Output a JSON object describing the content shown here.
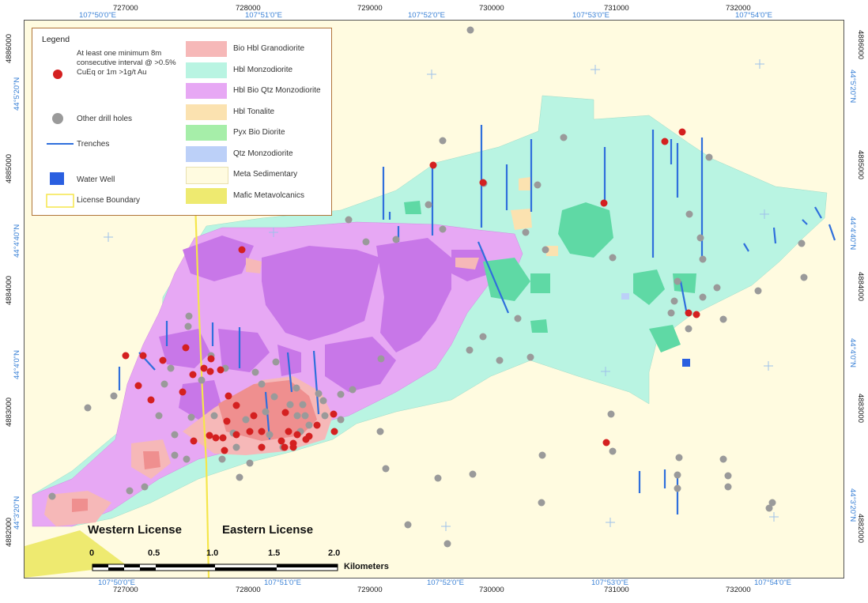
{
  "legend": {
    "title": "Legend",
    "symbols": {
      "significant_interval": "At least one minimum 8m consecutive interval @ >0.5% CuEq or 1m >1g/t Au",
      "other_drill_holes": "Other drill holes",
      "trenches": "Trenches",
      "water_well": "Water Well",
      "license_boundary": "License Boundary"
    },
    "units": [
      {
        "label": "Bio Hbl Granodiorite",
        "color": "#f6b8b8"
      },
      {
        "label": "Hbl Monzodiorite",
        "color": "#b9f4e2"
      },
      {
        "label": "Hbl Bio Qtz Monzodiorite",
        "color": "#e7a8f4"
      },
      {
        "label": "Hbl Tonalite",
        "color": "#fbe2b0"
      },
      {
        "label": "Pyx Bio Diorite",
        "color": "#a6eea9"
      },
      {
        "label": "Qtz Monzodiorite",
        "color": "#bcd0f8"
      },
      {
        "label": "Meta Sedimentary",
        "color": "#fffbe0"
      },
      {
        "label": "Mafic Metavolcanics",
        "color": "#eeea70"
      }
    ]
  },
  "grid": {
    "easting_top": [
      "727000",
      "728000",
      "729000",
      "730000",
      "731000",
      "732000"
    ],
    "easting_bottom": [
      "727000",
      "728000",
      "729000",
      "730000",
      "731000",
      "732000"
    ],
    "lon_top": [
      "107°50'0\"E",
      "107°51'0\"E",
      "107°52'0\"E",
      "107°53'0\"E",
      "107°54'0\"E"
    ],
    "lon_bottom": [
      "107°50'0\"E",
      "107°51'0\"E",
      "107°52'0\"E",
      "107°53'0\"E",
      "107°54'0\"E"
    ],
    "northing_left": [
      "4886000",
      "4885000",
      "4884000",
      "4883000",
      "4882000"
    ],
    "northing_right": [
      "4886000",
      "4885000",
      "4884000",
      "4883000",
      "4882000"
    ],
    "lat_left": [
      "44°5'20\"N",
      "44°4'40\"N",
      "44°4'0\"N",
      "44°3'20\"N"
    ],
    "lat_right": [
      "44°5'20\"N",
      "44°4'40\"N",
      "44°4'0\"N",
      "44°3'20\"N"
    ]
  },
  "licenses": {
    "western": "Western License",
    "eastern": "Eastern License"
  },
  "scalebar": {
    "labels": [
      "0",
      "0.5",
      "1.0",
      "1.5",
      "2.0"
    ],
    "unit": "Kilometers"
  },
  "colors": {
    "significant_interval": "#d42020",
    "drill_hole": "#9a9a9a",
    "trench": "#2f6fdc",
    "water_well": "#2a5fe0",
    "license_boundary": "#f5e64a",
    "grid_cross": "#9ec0ea"
  }
}
